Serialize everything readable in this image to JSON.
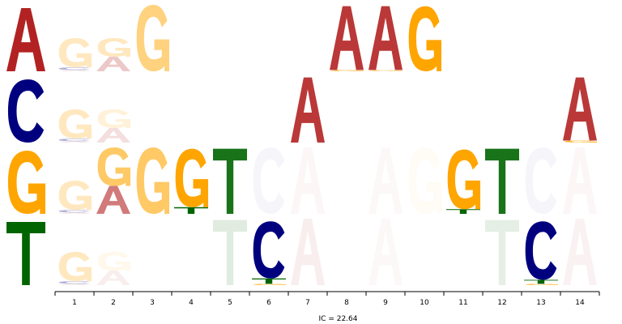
{
  "figure": {
    "ic_text": "IC = 22.64"
  },
  "colors": {
    "A": "#b22222",
    "C": "#00007f",
    "G": "#ffa500",
    "T": "#006400"
  },
  "chart_data": {
    "type": "sequence-logo",
    "positions": [
      "1",
      "2",
      "3",
      "4",
      "5",
      "6",
      "7",
      "8",
      "9",
      "10",
      "11",
      "12",
      "13",
      "14"
    ],
    "legend_rows": [
      "A",
      "C",
      "G",
      "T"
    ],
    "rows": [
      {
        "legend": "A",
        "columns": [
          {
            "pos": "1",
            "stack": [
              [
                "A",
                0.02,
                0.15
              ],
              [
                "C",
                0.04,
                0.3
              ],
              [
                "G",
                0.44,
                0.25
              ]
            ]
          },
          {
            "pos": "2",
            "stack": [
              [
                "A",
                0.22,
                0.25
              ],
              [
                "G",
                0.28,
                0.25
              ]
            ]
          },
          {
            "pos": "3",
            "stack": [
              [
                "G",
                1.0,
                0.5
              ]
            ]
          },
          {
            "pos": "4",
            "stack": []
          },
          {
            "pos": "5",
            "stack": []
          },
          {
            "pos": "6",
            "stack": []
          },
          {
            "pos": "7",
            "stack": []
          },
          {
            "pos": "8",
            "stack": [
              [
                "G",
                0.02,
                0.8
              ],
              [
                "A",
                0.96,
                0.9
              ]
            ]
          },
          {
            "pos": "9",
            "stack": [
              [
                "G",
                0.02,
                0.6
              ],
              [
                "A",
                0.96,
                0.9
              ]
            ]
          },
          {
            "pos": "10",
            "stack": [
              [
                "G",
                0.98,
                1.0
              ]
            ]
          },
          {
            "pos": "11",
            "stack": []
          },
          {
            "pos": "12",
            "stack": []
          },
          {
            "pos": "13",
            "stack": []
          },
          {
            "pos": "14",
            "stack": []
          }
        ]
      },
      {
        "legend": "C",
        "columns": [
          {
            "pos": "1",
            "stack": [
              [
                "A",
                0.02,
                0.15
              ],
              [
                "C",
                0.04,
                0.3
              ],
              [
                "G",
                0.44,
                0.25
              ]
            ]
          },
          {
            "pos": "2",
            "stack": [
              [
                "A",
                0.22,
                0.15
              ],
              [
                "G",
                0.28,
                0.15
              ]
            ]
          },
          {
            "pos": "3",
            "stack": []
          },
          {
            "pos": "4",
            "stack": []
          },
          {
            "pos": "5",
            "stack": []
          },
          {
            "pos": "6",
            "stack": []
          },
          {
            "pos": "7",
            "stack": [
              [
                "A",
                0.98,
                0.9
              ]
            ]
          },
          {
            "pos": "8",
            "stack": []
          },
          {
            "pos": "9",
            "stack": []
          },
          {
            "pos": "10",
            "stack": []
          },
          {
            "pos": "11",
            "stack": []
          },
          {
            "pos": "12",
            "stack": []
          },
          {
            "pos": "13",
            "stack": []
          },
          {
            "pos": "14",
            "stack": [
              [
                "G",
                0.03,
                0.8
              ],
              [
                "A",
                0.95,
                0.9
              ]
            ]
          }
        ]
      },
      {
        "legend": "G",
        "columns": [
          {
            "pos": "1",
            "stack": [
              [
                "A",
                0.02,
                0.15
              ],
              [
                "C",
                0.04,
                0.3
              ],
              [
                "G",
                0.44,
                0.25
              ]
            ]
          },
          {
            "pos": "2",
            "stack": [
              [
                "A",
                0.42,
                0.6
              ],
              [
                "G",
                0.58,
                0.6
              ]
            ]
          },
          {
            "pos": "3",
            "stack": [
              [
                "G",
                1.0,
                0.6
              ]
            ]
          },
          {
            "pos": "4",
            "stack": [
              [
                "T",
                0.1,
                1.0
              ],
              [
                "G",
                0.88,
                1.0
              ]
            ]
          },
          {
            "pos": "5",
            "stack": [
              [
                "T",
                0.98,
                0.9
              ]
            ]
          },
          {
            "pos": "6",
            "stack": [
              [
                "C",
                1.0,
                0.04
              ]
            ]
          },
          {
            "pos": "7",
            "stack": [
              [
                "A",
                1.0,
                0.04
              ]
            ]
          },
          {
            "pos": "8",
            "stack": []
          },
          {
            "pos": "9",
            "stack": [
              [
                "A",
                1.0,
                0.03
              ]
            ]
          },
          {
            "pos": "10",
            "stack": [
              [
                "G",
                1.0,
                0.04
              ]
            ]
          },
          {
            "pos": "11",
            "stack": [
              [
                "T",
                0.07,
                1.0
              ],
              [
                "G",
                0.9,
                1.0
              ]
            ]
          },
          {
            "pos": "12",
            "stack": [
              [
                "T",
                0.98,
                0.9
              ]
            ]
          },
          {
            "pos": "13",
            "stack": [
              [
                "C",
                1.0,
                0.04
              ]
            ]
          },
          {
            "pos": "14",
            "stack": [
              [
                "A",
                1.0,
                0.04
              ]
            ]
          }
        ]
      },
      {
        "legend": "T",
        "columns": [
          {
            "pos": "1",
            "stack": [
              [
                "A",
                0.02,
                0.15
              ],
              [
                "C",
                0.04,
                0.3
              ],
              [
                "G",
                0.44,
                0.25
              ]
            ]
          },
          {
            "pos": "2",
            "stack": [
              [
                "A",
                0.22,
                0.08
              ],
              [
                "G",
                0.28,
                0.08
              ]
            ]
          },
          {
            "pos": "3",
            "stack": []
          },
          {
            "pos": "4",
            "stack": []
          },
          {
            "pos": "5",
            "stack": [
              [
                "T",
                0.98,
                0.12
              ]
            ]
          },
          {
            "pos": "6",
            "stack": [
              [
                "G",
                0.02,
                0.8
              ],
              [
                "T",
                0.08,
                1.0
              ],
              [
                "C",
                0.86,
                1.0
              ]
            ]
          },
          {
            "pos": "7",
            "stack": [
              [
                "A",
                1.0,
                0.08
              ]
            ]
          },
          {
            "pos": "8",
            "stack": []
          },
          {
            "pos": "9",
            "stack": [
              [
                "A",
                1.0,
                0.03
              ]
            ]
          },
          {
            "pos": "10",
            "stack": []
          },
          {
            "pos": "11",
            "stack": []
          },
          {
            "pos": "12",
            "stack": [
              [
                "T",
                0.98,
                0.1
              ]
            ]
          },
          {
            "pos": "13",
            "stack": [
              [
                "G",
                0.02,
                0.8
              ],
              [
                "T",
                0.06,
                1.0
              ],
              [
                "C",
                0.88,
                1.0
              ]
            ]
          },
          {
            "pos": "14",
            "stack": [
              [
                "A",
                1.0,
                0.06
              ]
            ]
          }
        ]
      }
    ]
  }
}
